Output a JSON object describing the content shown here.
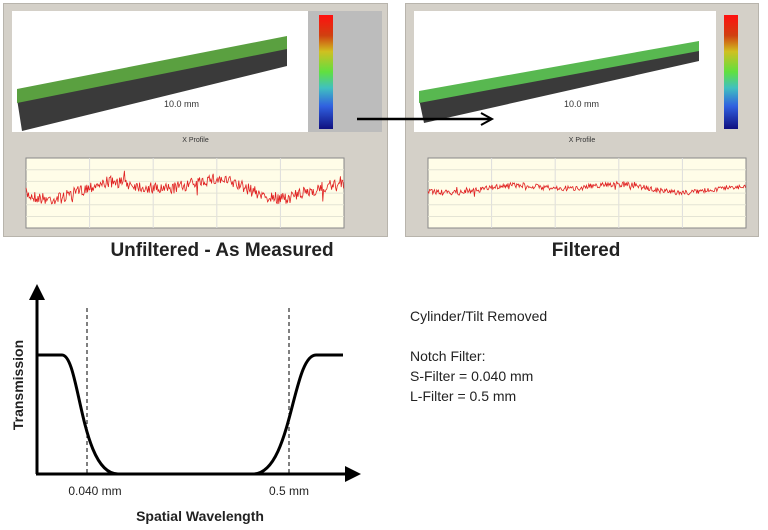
{
  "panels": [
    {
      "scale_label": "10.0 mm",
      "profile_title": "X Profile",
      "caption": "Unfiltered - As Measured"
    },
    {
      "scale_label": "10.0 mm",
      "profile_title": "X Profile",
      "caption": "Filtered"
    }
  ],
  "filter_chart": {
    "ylabel": "Transmission",
    "xlabel": "Spatial Wavelength",
    "s_cutoff_label": "0.040 mm",
    "l_cutoff_label": "0.5 mm"
  },
  "notes": {
    "line1": "Cylinder/Tilt Removed",
    "line2": "Notch Filter:",
    "line3": "S-Filter = 0.040 mm",
    "line4": "L-Filter = 0.5 mm"
  },
  "colors": {
    "profile": "#e02020",
    "profile_bg": "#fffde8",
    "arrow": "#000000"
  }
}
